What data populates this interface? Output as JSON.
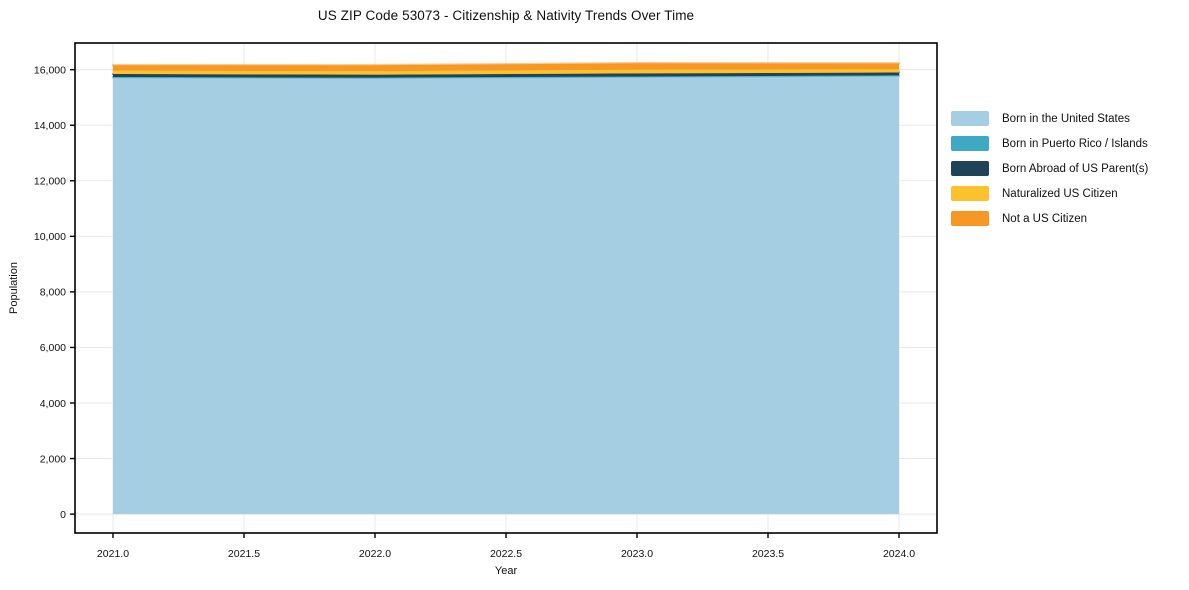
{
  "chart_data": {
    "type": "area",
    "stacked": true,
    "title": "US ZIP Code 53073 - Citizenship & Nativity Trends Over Time",
    "xlabel": "Year",
    "ylabel": "Population",
    "x": [
      2021,
      2022,
      2023,
      2024
    ],
    "series": [
      {
        "name": "Born in the United States",
        "color": "#a5cee3",
        "values": [
          15710,
          15690,
          15730,
          15770
        ]
      },
      {
        "name": "Born in Puerto Rico / Islands",
        "color": "#3fa8c2",
        "values": [
          25,
          25,
          25,
          25
        ]
      },
      {
        "name": "Born Abroad of US Parent(s)",
        "color": "#1f4457",
        "values": [
          110,
          105,
          110,
          105
        ]
      },
      {
        "name": "Naturalized US Citizen",
        "color": "#fcc22d",
        "values": [
          120,
          125,
          130,
          115
        ]
      },
      {
        "name": "Not a US Citizen",
        "color": "#f79824",
        "values": [
          195,
          215,
          235,
          210
        ]
      }
    ],
    "x_ticks": {
      "values": [
        2021,
        2021.5,
        2022,
        2022.5,
        2023,
        2023.5,
        2024
      ],
      "labels": [
        "2021.0",
        "2021.5",
        "2022.0",
        "2022.5",
        "2023.0",
        "2023.5",
        "2024.0"
      ]
    },
    "y_ticks": {
      "values": [
        0,
        2000,
        4000,
        6000,
        8000,
        10000,
        12000,
        14000,
        16000
      ],
      "labels": [
        "0",
        "2,000",
        "4,000",
        "6,000",
        "8,000",
        "10,000",
        "12,000",
        "14,000",
        "16,000"
      ]
    },
    "xlim": [
      2020.855,
      2024.145
    ],
    "ylim": [
      -680,
      16960
    ],
    "grid": true,
    "legend_position": "right-outside"
  },
  "colors": {
    "background": "#ffffff",
    "grid": "#e8e8e8",
    "spine": "#000000",
    "tick_text": "#111111"
  }
}
